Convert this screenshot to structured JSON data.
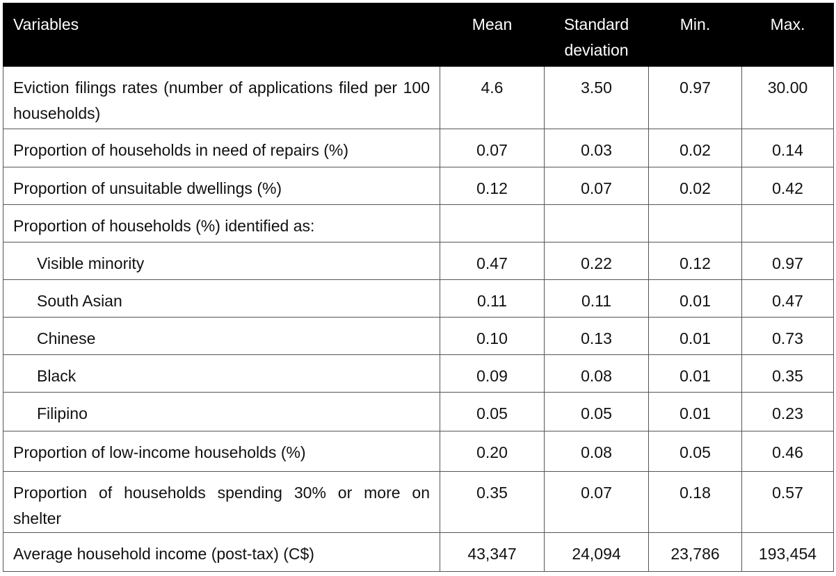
{
  "table": {
    "header": [
      "Variables",
      "Mean",
      "Standard deviation",
      "Min.",
      "Max."
    ],
    "rows": [
      [
        "Eviction filings rates (number of applications filed per 100 households)",
        "4.6",
        "3.50",
        "0.97",
        "30.00"
      ],
      [
        "Proportion of households in need of repairs (%)",
        "0.07",
        "0.03",
        "0.02",
        "0.14"
      ],
      [
        "Proportion of unsuitable dwellings (%)",
        "0.12",
        "0.07",
        "0.02",
        "0.42"
      ],
      [
        "Proportion of households (%) identified as:"
      ],
      [
        "Visible minority",
        "0.47",
        "0.22",
        "0.12",
        "0.97"
      ],
      [
        "South Asian",
        "0.11",
        "0.11",
        "0.01",
        "0.47"
      ],
      [
        "Chinese",
        "0.10",
        "0.13",
        "0.01",
        "0.73"
      ],
      [
        "Black",
        "0.09",
        "0.08",
        "0.01",
        "0.35"
      ],
      [
        "Filipino",
        "0.05",
        "0.05",
        "0.01",
        "0.23"
      ],
      [
        "Proportion of low-income households (%)",
        "0.20",
        "0.08",
        "0.05",
        "0.46"
      ],
      [
        "Proportion of households spending 30% or more on shelter",
        "0.35",
        "0.07",
        "0.18",
        "0.57"
      ],
      [
        "Average household income (post-tax) (C$)",
        "43,347",
        "24,094",
        "23,786",
        "193,454"
      ]
    ]
  }
}
